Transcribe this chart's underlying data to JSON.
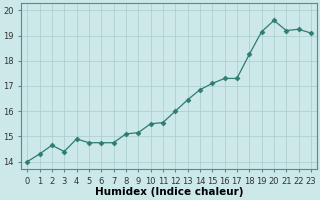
{
  "x": [
    0,
    1,
    2,
    3,
    4,
    5,
    6,
    7,
    8,
    9,
    10,
    11,
    12,
    13,
    14,
    15,
    16,
    17,
    18,
    19,
    20,
    21,
    22,
    23
  ],
  "y": [
    14.0,
    14.3,
    14.65,
    14.4,
    14.9,
    14.75,
    14.75,
    14.75,
    15.1,
    15.15,
    15.5,
    15.55,
    16.0,
    16.45,
    16.85,
    17.1,
    17.3,
    17.3,
    18.25,
    19.15,
    19.6,
    19.2,
    19.25,
    19.1
  ],
  "title": "",
  "xlabel": "Humidex (Indice chaleur)",
  "ylabel": "",
  "xlim": [
    -0.5,
    23.5
  ],
  "ylim": [
    13.7,
    20.3
  ],
  "yticks": [
    14,
    15,
    16,
    17,
    18,
    19,
    20
  ],
  "xtick_labels": [
    "0",
    "1",
    "2",
    "3",
    "4",
    "5",
    "6",
    "7",
    "8",
    "9",
    "10",
    "11",
    "12",
    "13",
    "14",
    "15",
    "16",
    "17",
    "18",
    "19",
    "20",
    "21",
    "22",
    "23"
  ],
  "line_color": "#2e7d6e",
  "marker_color": "#2e7d6e",
  "bg_color": "#cce8e8",
  "grid_color": "#aacccc",
  "xlabel_fontsize": 7.5,
  "tick_fontsize": 6.0
}
